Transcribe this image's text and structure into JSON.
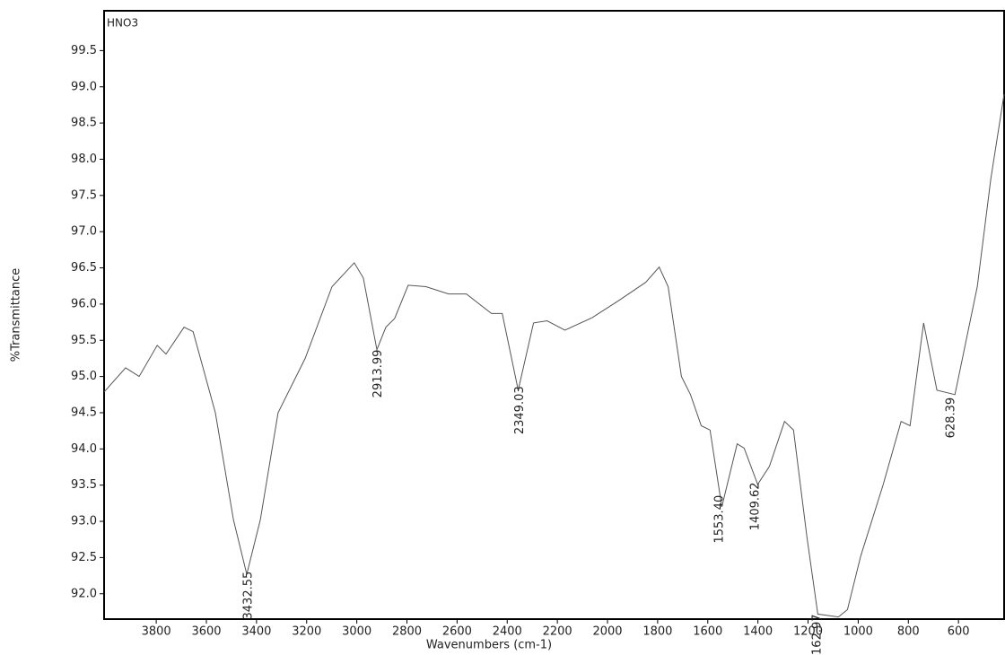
{
  "chart_data": {
    "type": "line",
    "x_label": "Wavenumbers (cm-1)",
    "y_label": "%Transmittance",
    "x": [
      4007,
      3922,
      3868,
      3796,
      3761,
      3689,
      3653,
      3564,
      3492,
      3439,
      3385,
      3314,
      3206,
      3099,
      3010,
      2974,
      2920,
      2884,
      2849,
      2795,
      2724,
      2634,
      2563,
      2463,
      2420,
      2356,
      2295,
      2241,
      2170,
      2062,
      1955,
      1848,
      1794,
      1758,
      1705,
      1669,
      1626,
      1591,
      1544,
      1483,
      1455,
      1401,
      1354,
      1294,
      1258,
      1204,
      1161,
      1079,
      1043,
      990,
      900,
      829,
      793,
      739,
      686,
      614,
      525,
      471,
      418
    ],
    "series": [
      {
        "name": "HNO3",
        "color": "#555555",
        "values": [
          94.79,
          95.12,
          95.0,
          95.43,
          95.31,
          95.68,
          95.62,
          94.5,
          93.02,
          92.27,
          93.02,
          94.5,
          95.25,
          96.24,
          96.57,
          96.36,
          95.37,
          95.68,
          95.8,
          96.26,
          96.24,
          96.14,
          96.14,
          95.87,
          95.87,
          94.81,
          95.74,
          95.77,
          95.64,
          95.81,
          96.05,
          96.3,
          96.51,
          96.24,
          95.0,
          94.75,
          94.32,
          94.26,
          93.2,
          94.07,
          94.01,
          93.51,
          93.76,
          94.38,
          94.26,
          92.77,
          91.72,
          91.68,
          91.78,
          92.52,
          93.51,
          94.38,
          94.32,
          95.74,
          94.81,
          94.75,
          96.24,
          97.73,
          98.9
        ]
      }
    ],
    "peaks": [
      {
        "value": 3432.55,
        "label": "3432.55"
      },
      {
        "value": 2913.99,
        "label": "2913.99"
      },
      {
        "value": 2349.03,
        "label": "2349.03"
      },
      {
        "value": 1553.4,
        "label": "1553.40"
      },
      {
        "value": 1409.62,
        "label": "1409.62"
      },
      {
        "value": 1162.97,
        "label": "1162.97"
      },
      {
        "value": 628.39,
        "label": "628.39"
      }
    ],
    "xlim": [
      4008,
      418
    ],
    "ylim": [
      91.65,
      100.05
    ],
    "xticks": [
      3800,
      3600,
      3400,
      3200,
      3000,
      2800,
      2600,
      2400,
      2200,
      2000,
      1800,
      1600,
      1400,
      1200,
      1000,
      800,
      600
    ],
    "yticks": [
      {
        "value": 92,
        "label": "92.0"
      },
      92.5,
      {
        "value": 93,
        "label": "93.0"
      },
      93.5,
      {
        "value": 94,
        "label": "94.0"
      },
      94.5,
      {
        "value": 95,
        "label": "95.0"
      },
      95.5,
      {
        "value": 96,
        "label": "96.0"
      },
      96.5,
      {
        "value": 97,
        "label": "97.0"
      },
      97.5,
      {
        "value": 98,
        "label": "98.0"
      },
      98.5,
      {
        "value": 99,
        "label": "99.0"
      },
      99.5
    ],
    "grid": false
  }
}
